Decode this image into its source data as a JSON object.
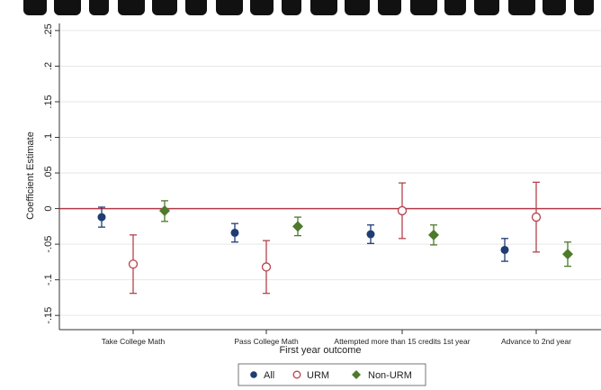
{
  "chart_data": {
    "type": "scatter",
    "subtype": "dot-and-whisker",
    "xlabel": "First year outcome",
    "ylabel": "Coefficient Estimate",
    "ylim": [
      -0.17,
      0.26
    ],
    "yticks": [
      ".25",
      ".2",
      ".15",
      ".1",
      ".05",
      "0",
      "-.05",
      "-.1",
      "-.15"
    ],
    "ytick_values": [
      0.25,
      0.2,
      0.15,
      0.1,
      0.05,
      0,
      -0.05,
      -0.1,
      -0.15
    ],
    "categories": [
      "Take College Math",
      "Pass College Math",
      "Attempted more than 15 credits 1st year",
      "Advance to 2nd year"
    ],
    "reference_line": {
      "y": 0,
      "color": "#b23a48"
    },
    "grid": "horizontal",
    "legend_position": "bottom",
    "series": [
      {
        "name": "All",
        "marker": "filled-circle",
        "color": "#1f3d73",
        "values": [
          -0.012,
          -0.034,
          -0.036,
          -0.058
        ],
        "ci_low": [
          -0.026,
          -0.047,
          -0.049,
          -0.074
        ],
        "ci_high": [
          0.002,
          -0.021,
          -0.023,
          -0.042
        ]
      },
      {
        "name": "URM",
        "marker": "hollow-circle",
        "color": "#b5434e",
        "values": [
          -0.078,
          -0.082,
          -0.003,
          -0.012
        ],
        "ci_low": [
          -0.119,
          -0.119,
          -0.042,
          -0.061
        ],
        "ci_high": [
          -0.037,
          -0.045,
          0.036,
          0.037
        ]
      },
      {
        "name": "Non-URM",
        "marker": "filled-diamond",
        "color": "#4e7a2c",
        "values": [
          -0.003,
          -0.025,
          -0.037,
          -0.064
        ],
        "ci_low": [
          -0.018,
          -0.038,
          -0.051,
          -0.081
        ],
        "ci_high": [
          0.011,
          -0.012,
          -0.023,
          -0.047
        ]
      }
    ]
  }
}
